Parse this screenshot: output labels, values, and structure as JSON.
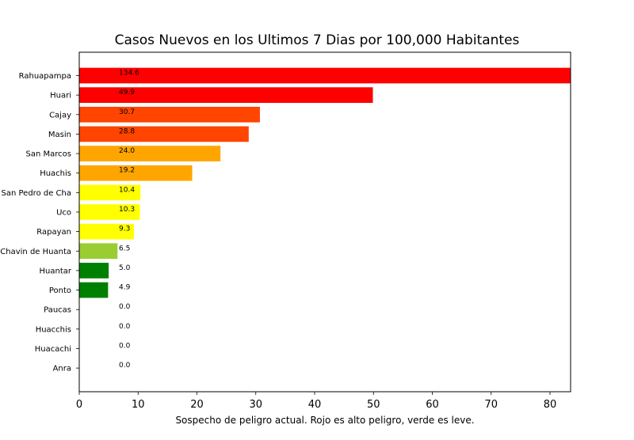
{
  "chart_data": {
    "type": "bar",
    "orientation": "horizontal",
    "title": "Casos Nuevos en los Ultimos 7 Dias por 100,000 Habitantes",
    "xlabel": "Sospecho de peligro actual. Rojo es alto peligro, verde es leve.",
    "ylabel": "",
    "xlim": [
      0,
      83.5
    ],
    "xticks": [
      0,
      10,
      20,
      30,
      40,
      50,
      60,
      70,
      80
    ],
    "grid": false,
    "legend": "none",
    "categories": [
      "Rahuapampa",
      "Huari",
      "Cajay",
      "Masin",
      "San Marcos",
      "Huachis",
      "San Pedro de Cha",
      "Uco",
      "Rapayan",
      "Chavin de Huanta",
      "Huantar",
      "Ponto",
      "Paucas",
      "Huacchis",
      "Huacachi",
      "Anra"
    ],
    "values": [
      134.6,
      49.9,
      30.7,
      28.8,
      24.0,
      19.2,
      10.4,
      10.3,
      9.3,
      6.5,
      5.0,
      4.9,
      0.0,
      0.0,
      0.0,
      0.0
    ],
    "data_labels": [
      "134.6",
      "49.9",
      "30.7",
      "28.8",
      "24.0",
      "19.2",
      "10.4",
      "10.3",
      "9.3",
      "6.5",
      "5.0",
      "4.9",
      "0.0",
      "0.0",
      "0.0",
      "0.0"
    ],
    "colors": [
      "#ff0000",
      "#ff0000",
      "#ff4500",
      "#ff4500",
      "#ffa500",
      "#ffa500",
      "#ffff00",
      "#ffff00",
      "#ffff00",
      "#9acd32",
      "#008000",
      "#008000",
      "#008000",
      "#008000",
      "#008000",
      "#008000"
    ]
  }
}
